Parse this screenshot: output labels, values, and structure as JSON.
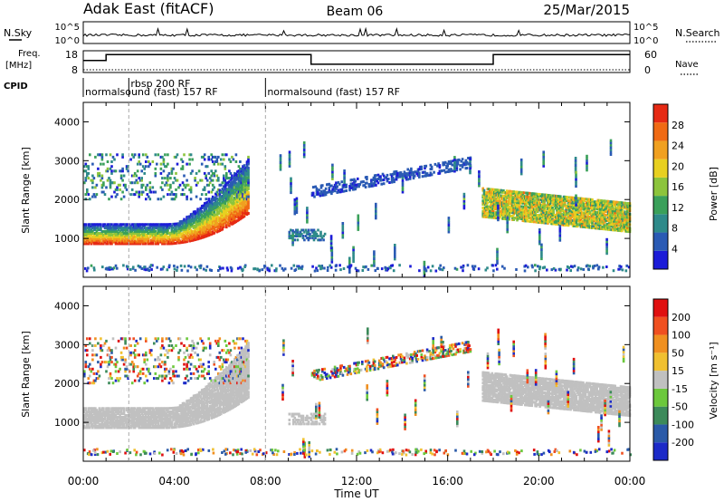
{
  "header": {
    "radar": "Adak East (fitACF)",
    "beam": "Beam 06",
    "date": "25/Mar/2015"
  },
  "noise_panel": {
    "left_label": "N.Sky",
    "right_label": "N.Search",
    "left_ticks": [
      "10^5",
      "10^0"
    ],
    "right_ticks": [
      "10^5",
      "10^0"
    ]
  },
  "freq_panel": {
    "left_label": "Freq.",
    "left_unit": "[MHz]",
    "right_label": "Nave",
    "left_ticks": [
      "18",
      "8"
    ],
    "right_ticks": [
      "60",
      "0"
    ],
    "freq_steps": [
      {
        "t0": 0.0,
        "t1": 1.0,
        "v": 0.55
      },
      {
        "t0": 1.0,
        "t1": 10.0,
        "v": 0.82
      },
      {
        "t0": 10.0,
        "t1": 18.0,
        "v": 0.38
      },
      {
        "t0": 18.0,
        "t1": 24.0,
        "v": 0.82
      }
    ]
  },
  "cpid": {
    "label": "CPID",
    "segments": [
      {
        "t0": 0.0,
        "text": "normalsound (fast) 157 RF",
        "row": 2
      },
      {
        "t0": 2.0,
        "text": "rbsp 200 RF",
        "row": 1
      },
      {
        "t0": 8.0,
        "text": "normalsound (fast) 157 RF",
        "row": 2
      }
    ]
  },
  "chart_data": [
    {
      "type": "heatmap",
      "title": "Power",
      "ylabel": "Slant Range [km]",
      "ylim": [
        0,
        4500
      ],
      "xlim": [
        0,
        24
      ],
      "y_ticks": [
        1000,
        2000,
        3000,
        4000
      ],
      "colorbar": {
        "label": "Power [dB]",
        "ticks": [
          "28",
          "24",
          "20",
          "16",
          "12",
          "8",
          "4"
        ],
        "colors": [
          "#1c1cd8",
          "#2a5ab4",
          "#2e8a8a",
          "#3aa05a",
          "#8cc43c",
          "#e8d020",
          "#f0a020",
          "#f06a14",
          "#e62a14"
        ]
      }
    },
    {
      "type": "heatmap",
      "title": "Velocity",
      "ylabel": "Slant Range [km]",
      "ylim": [
        0,
        4500
      ],
      "xlim": [
        0,
        24
      ],
      "y_ticks": [
        1000,
        2000,
        3000,
        4000
      ],
      "colorbar": {
        "label": "Velocity [m s⁻¹]",
        "ticks": [
          "200",
          "100",
          "50",
          "15",
          "-15",
          "-50",
          "-100",
          "-200"
        ],
        "colors": [
          "#1c2ac8",
          "#2a5aa8",
          "#3c8a5a",
          "#6cc83c",
          "#c0c0c0",
          "#f0c030",
          "#f09020",
          "#f05020",
          "#e01010"
        ]
      }
    }
  ],
  "x_axis": {
    "label": "Time UT",
    "ticks": [
      "00:00",
      "04:00",
      "08:00",
      "12:00",
      "16:00",
      "20:00",
      "00:00"
    ],
    "tick_hours": [
      0,
      4,
      8,
      12,
      16,
      20,
      24
    ]
  },
  "colors": {
    "power_low": "#1c1cd8",
    "power_high": "#e62a14",
    "velocity_ground": "#c0c0c0"
  }
}
